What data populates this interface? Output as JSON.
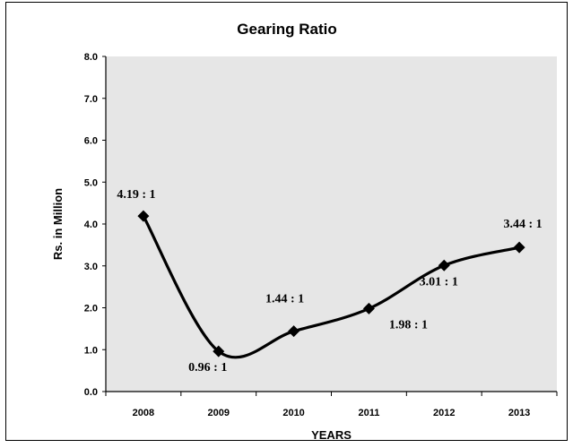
{
  "chart_data": {
    "type": "line",
    "title": "Gearing Ratio",
    "xlabel": "YEARS",
    "ylabel": "Rs. in Million",
    "categories": [
      "2008",
      "2009",
      "2010",
      "2011",
      "2012",
      "2013"
    ],
    "series": [
      {
        "values": [
          4.19,
          0.96,
          1.44,
          1.98,
          3.01,
          3.44
        ],
        "labels": [
          "4.19 : 1",
          "0.96 : 1",
          "1.44 : 1",
          "1.98 : 1",
          "3.01 : 1",
          "3.44 : 1"
        ],
        "color": "#000000",
        "marker": "diamond",
        "smooth": true
      }
    ],
    "ylim": [
      0,
      8
    ],
    "yticks": [
      "0.0",
      "1.0",
      "2.0",
      "3.0",
      "4.0",
      "5.0",
      "6.0",
      "7.0",
      "8.0"
    ],
    "plot_background": "#e6e6e6",
    "grid": false,
    "legend": "none"
  }
}
